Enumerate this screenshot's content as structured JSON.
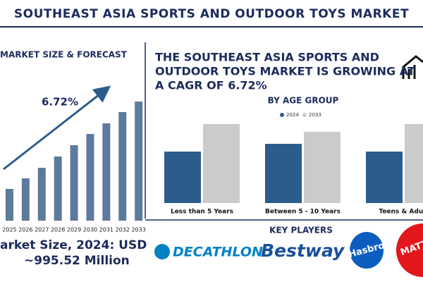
{
  "header": {
    "title": "SOUTHEAST ASIA SPORTS AND OUTDOOR TOYS MARKET"
  },
  "chart_data": [
    {
      "type": "bar",
      "title": "MARKET SIZE & FORECAST",
      "annotation": "6.72%",
      "categories": [
        "2025",
        "2026",
        "2027",
        "2028",
        "2029",
        "2030",
        "2031",
        "2032",
        "2033"
      ],
      "values": [
        45,
        60,
        75,
        91,
        107,
        123,
        138,
        154,
        169
      ],
      "color": "#5c7a9c"
    },
    {
      "type": "bar",
      "title": "BY AGE GROUP",
      "categories": [
        "Less than 5 Years",
        "Between 5 - 10 Years",
        "Teens & Adult"
      ],
      "series": [
        {
          "name": "2024",
          "color": "#2b5c8c",
          "values": [
            73,
            84,
            73
          ]
        },
        {
          "name": "2033",
          "color": "#cbcbcb",
          "values": [
            112,
            101,
            112
          ]
        }
      ]
    }
  ],
  "headline": [
    "THE SOUTHEAST ASIA SPORTS AND",
    "OUTDOOR TOYS MARKET IS GROWING AT",
    "A CAGR OF 6.72%"
  ],
  "market_size": [
    "arket Size, 2024: USD",
    "~995.52 Million"
  ],
  "key_players": {
    "title": "KEY PLAYERS",
    "logos": [
      "DECATHLON",
      "Bestway",
      "Hasbro",
      "MATTEL"
    ]
  }
}
